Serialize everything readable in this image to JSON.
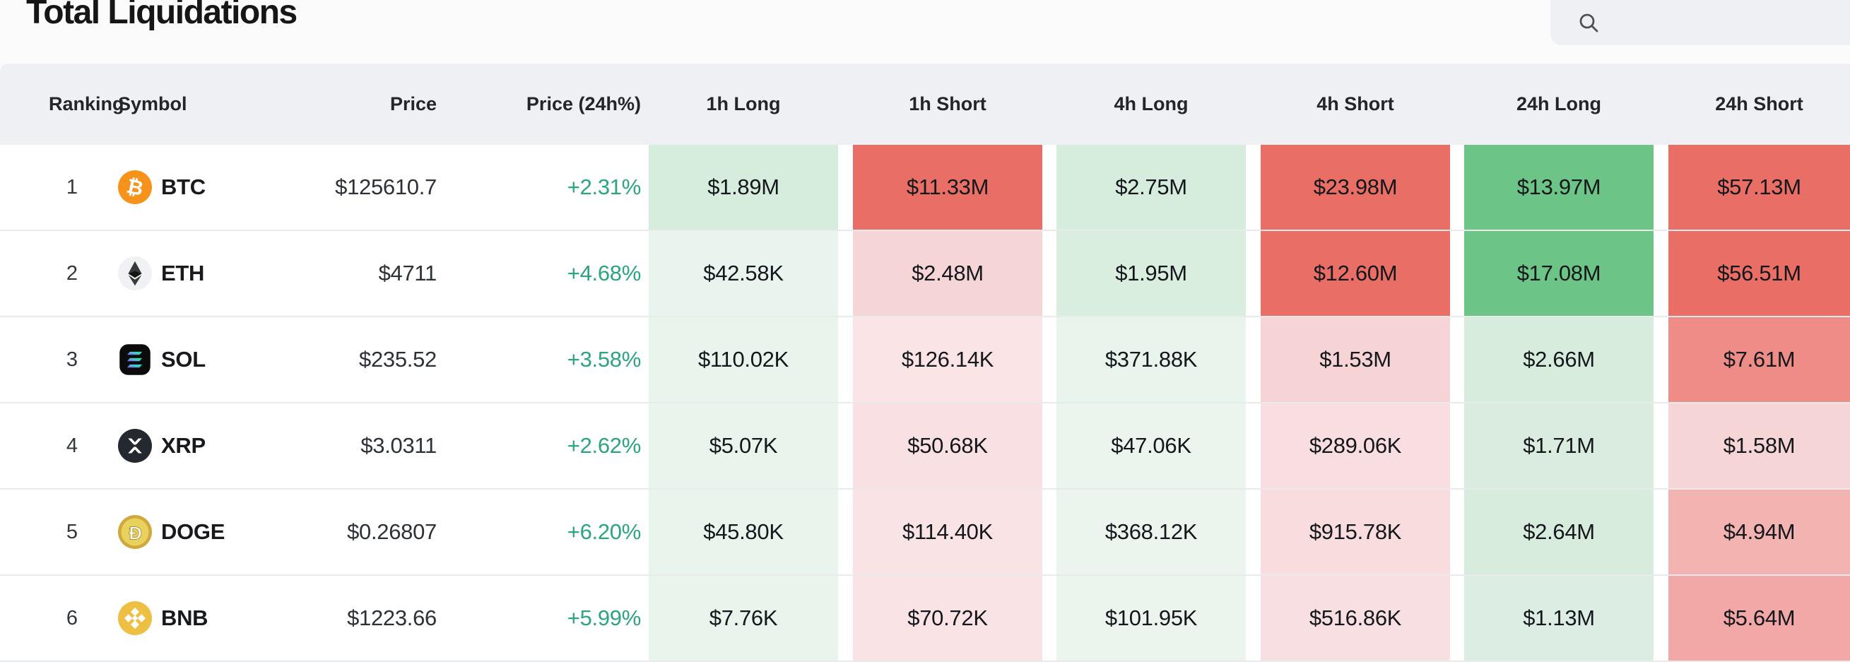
{
  "page": {
    "title": "Total Liquidations"
  },
  "search": {
    "icon": "search-icon",
    "value": "",
    "placeholder": ""
  },
  "colors": {
    "header_band": "#eef0f3",
    "row_bg": "#ffffff",
    "divider": "#e9eaec",
    "positive_text": "#2ca57c",
    "long_strong": "#6dc487",
    "long_light": "#d6ecdc",
    "long_faint": "#e9f4ec",
    "short_strong": "#e96e65",
    "short_medium": "#ee8d87",
    "short_light": "#f6d4d5",
    "short_faint": "#fae3e4"
  },
  "table": {
    "headers": {
      "ranking": "Ranking",
      "symbol": "Symbol",
      "price": "Price",
      "price_24h": "Price (24h%)",
      "h1_long": "1h Long",
      "h1_short": "1h Short",
      "h4_long": "4h Long",
      "h4_short": "4h Short",
      "h24_long": "24h Long",
      "h24_short": "24h Short"
    },
    "rows": [
      {
        "rank": "1",
        "symbol": "BTC",
        "icon": "btc-coin-icon",
        "price": "$125610.7",
        "change": "+2.31%",
        "cells": [
          {
            "v": "$1.89M",
            "bg": "#d6ecdc"
          },
          {
            "v": "$11.33M",
            "bg": "#e96e65"
          },
          {
            "v": "$2.75M",
            "bg": "#d6ecdc"
          },
          {
            "v": "$23.98M",
            "bg": "#e96e65"
          },
          {
            "v": "$13.97M",
            "bg": "#6dc487"
          },
          {
            "v": "$57.13M",
            "bg": "#e96e65"
          }
        ]
      },
      {
        "rank": "2",
        "symbol": "ETH",
        "icon": "eth-coin-icon",
        "price": "$4711",
        "change": "+4.68%",
        "cells": [
          {
            "v": "$42.58K",
            "bg": "#eaf4ee"
          },
          {
            "v": "$2.48M",
            "bg": "#f5d5d6"
          },
          {
            "v": "$1.95M",
            "bg": "#daeee0"
          },
          {
            "v": "$12.60M",
            "bg": "#e96e65"
          },
          {
            "v": "$17.08M",
            "bg": "#6dc487"
          },
          {
            "v": "$56.51M",
            "bg": "#e96e65"
          }
        ]
      },
      {
        "rank": "3",
        "symbol": "SOL",
        "icon": "sol-coin-icon",
        "price": "$235.52",
        "change": "+3.58%",
        "cells": [
          {
            "v": "$110.02K",
            "bg": "#e9f4ec"
          },
          {
            "v": "$126.14K",
            "bg": "#fae4e5"
          },
          {
            "v": "$371.88K",
            "bg": "#e9f4ec"
          },
          {
            "v": "$1.53M",
            "bg": "#f6d4d5"
          },
          {
            "v": "$2.66M",
            "bg": "#d8ecde"
          },
          {
            "v": "$7.61M",
            "bg": "#ee8d87"
          }
        ]
      },
      {
        "rank": "4",
        "symbol": "XRP",
        "icon": "xrp-coin-icon",
        "price": "$3.0311",
        "change": "+2.62%",
        "cells": [
          {
            "v": "$5.07K",
            "bg": "#e9f4ec"
          },
          {
            "v": "$50.68K",
            "bg": "#f9e1e3"
          },
          {
            "v": "$47.06K",
            "bg": "#ebf5ee"
          },
          {
            "v": "$289.06K",
            "bg": "#f8dee0"
          },
          {
            "v": "$1.71M",
            "bg": "#d9ecdf"
          },
          {
            "v": "$1.58M",
            "bg": "#f6d5d6"
          }
        ]
      },
      {
        "rank": "5",
        "symbol": "DOGE",
        "icon": "doge-coin-icon",
        "price": "$0.26807",
        "change": "+6.20%",
        "cells": [
          {
            "v": "$45.80K",
            "bg": "#e9f4ec"
          },
          {
            "v": "$114.40K",
            "bg": "#fae3e4"
          },
          {
            "v": "$368.12K",
            "bg": "#ebf5ee"
          },
          {
            "v": "$915.78K",
            "bg": "#f8dcde"
          },
          {
            "v": "$2.64M",
            "bg": "#d7ecdd"
          },
          {
            "v": "$4.94M",
            "bg": "#f3b3b1"
          }
        ]
      },
      {
        "rank": "6",
        "symbol": "BNB",
        "icon": "bnb-coin-icon",
        "price": "$1223.66",
        "change": "+5.99%",
        "cells": [
          {
            "v": "$7.76K",
            "bg": "#e9f4ec"
          },
          {
            "v": "$70.72K",
            "bg": "#fae3e4"
          },
          {
            "v": "$101.95K",
            "bg": "#ebf5ee"
          },
          {
            "v": "$516.86K",
            "bg": "#f8dfe1"
          },
          {
            "v": "$1.13M",
            "bg": "#dceee3"
          },
          {
            "v": "$5.64M",
            "bg": "#f1a8a6"
          }
        ]
      }
    ]
  }
}
